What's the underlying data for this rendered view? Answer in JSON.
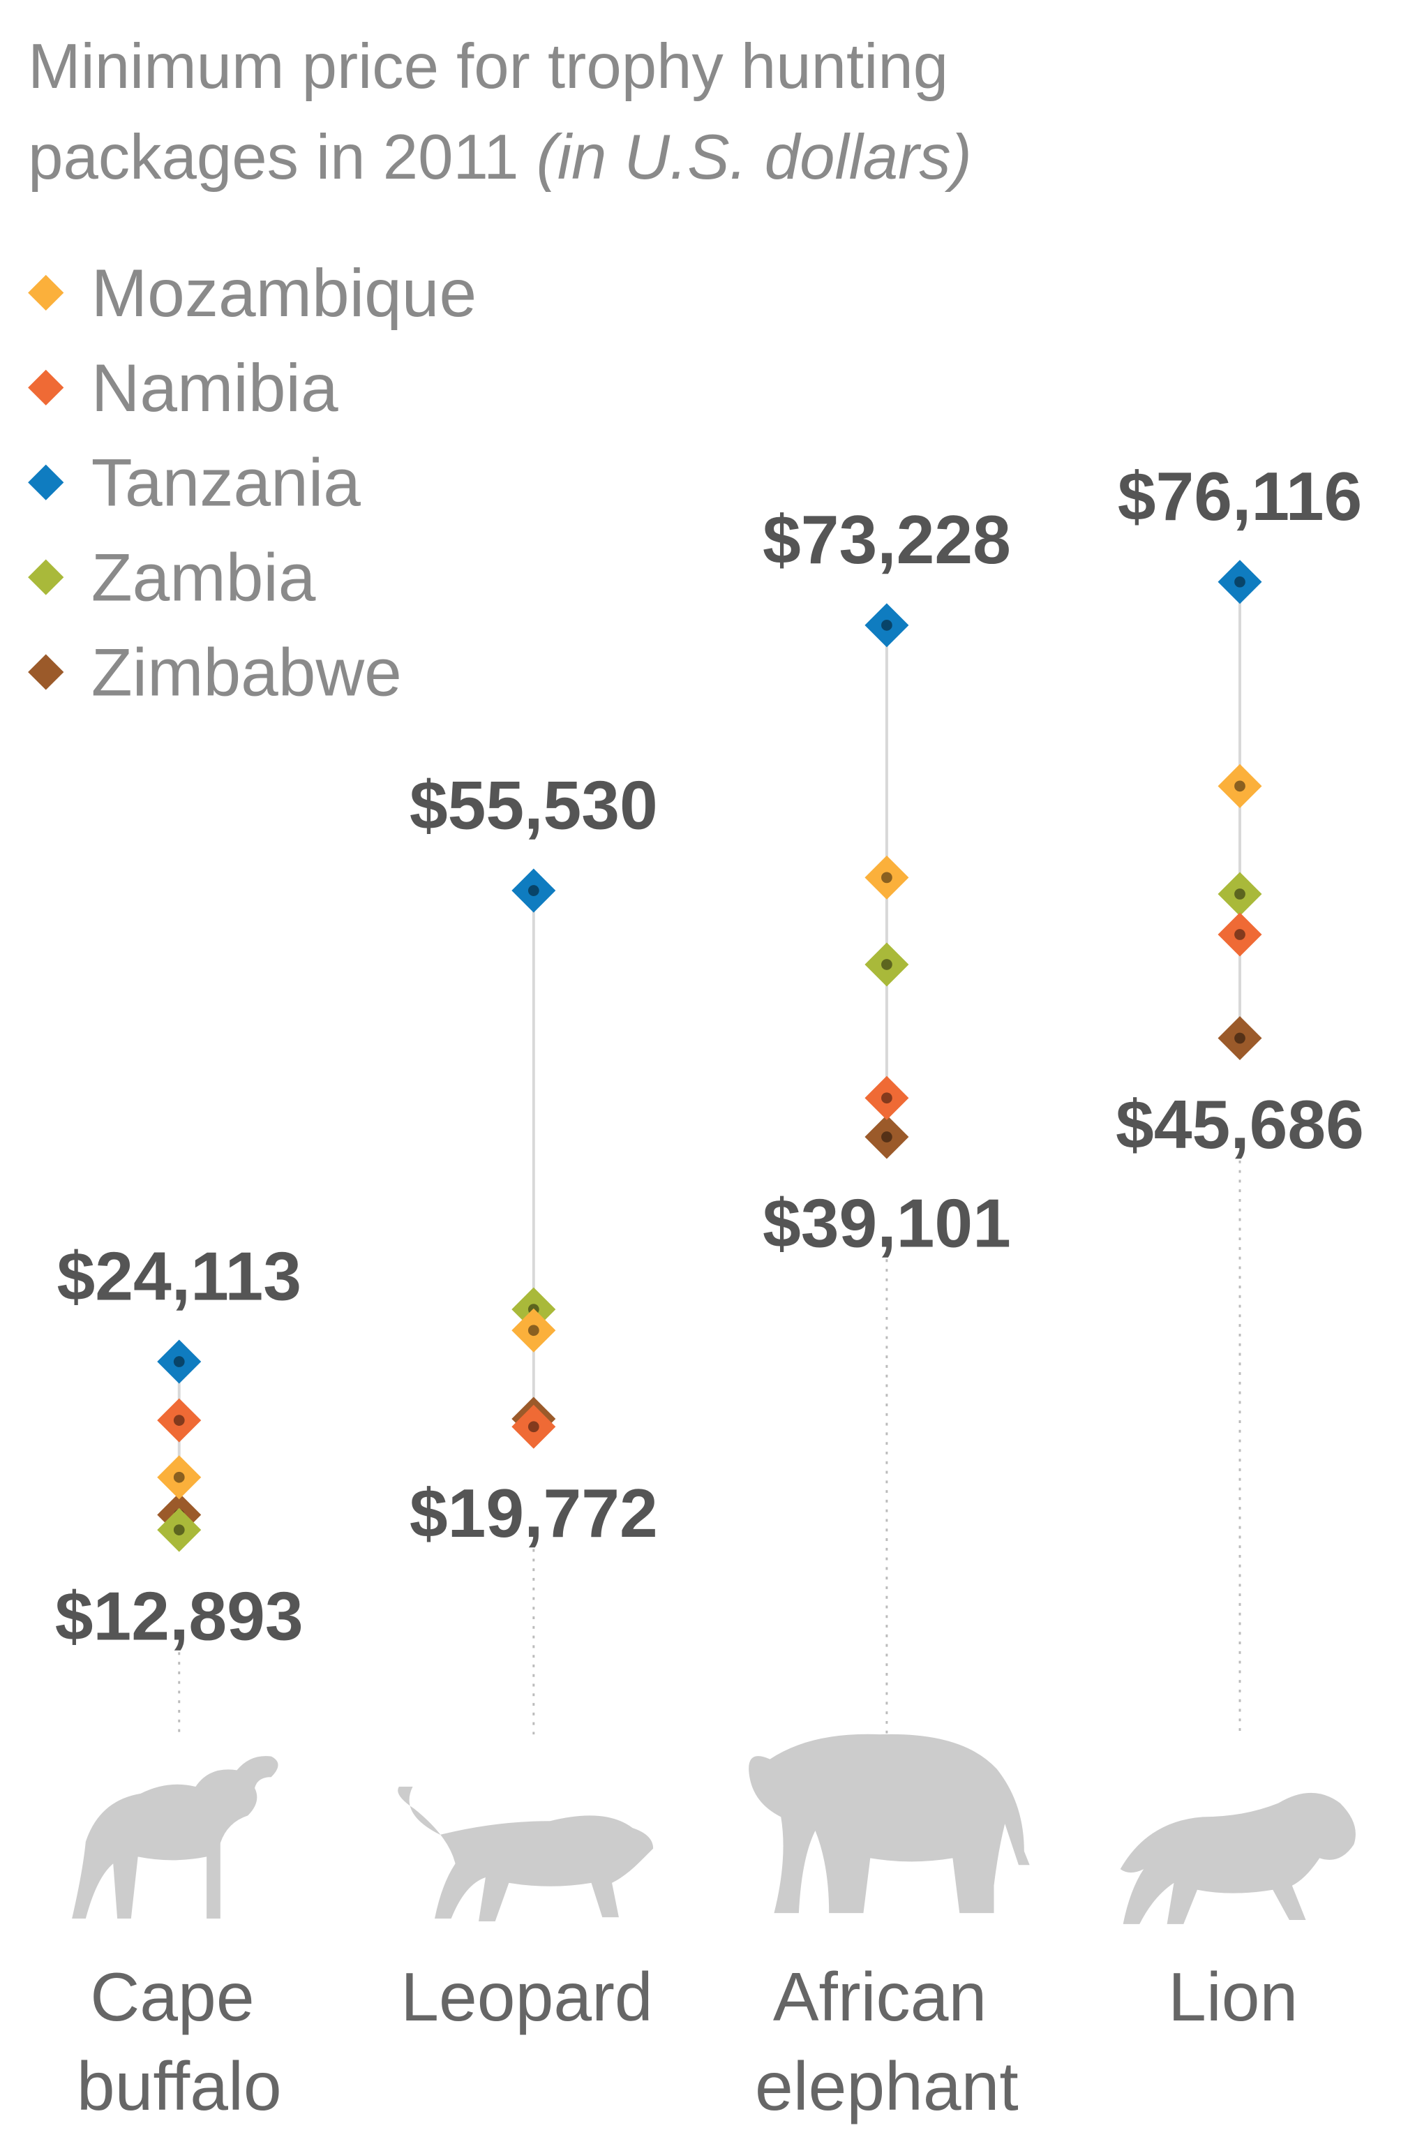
{
  "chart_data": {
    "type": "scatter",
    "title": "Minimum price for trophy hunting packages in 2011",
    "title_unit": "(in U.S. dollars)",
    "legend_position": "top-left",
    "grid": false,
    "series": [
      {
        "name": "Mozambique",
        "color": "#fbb03b",
        "values": [
          16400,
          26200,
          56400,
          62500
        ]
      },
      {
        "name": "Namibia",
        "color": "#ef6a35",
        "values": [
          20200,
          19772,
          41700,
          52600
        ]
      },
      {
        "name": "Tanzania",
        "color": "#0f7cc0",
        "values": [
          24113,
          55530,
          73228,
          76116
        ]
      },
      {
        "name": "Zambia",
        "color": "#a9b93a",
        "values": [
          12893,
          27600,
          50600,
          55300
        ]
      },
      {
        "name": "Zimbabwe",
        "color": "#9b5a2a",
        "values": [
          13900,
          20300,
          39101,
          45686
        ]
      }
    ],
    "categories": [
      {
        "line1": "Cape",
        "line2": "buffalo",
        "max_label": "$24,113",
        "min_label": "$12,893",
        "icon": "buffalo-icon"
      },
      {
        "line1": "Leopard",
        "line2": "",
        "max_label": "$55,530",
        "min_label": "$19,772",
        "icon": "leopard-icon"
      },
      {
        "line1": "African",
        "line2": "elephant",
        "max_label": "$73,228",
        "min_label": "$39,101",
        "icon": "elephant-icon"
      },
      {
        "line1": "Lion",
        "line2": "",
        "max_label": "$76,116",
        "min_label": "$45,686",
        "icon": "lion-icon"
      }
    ]
  }
}
